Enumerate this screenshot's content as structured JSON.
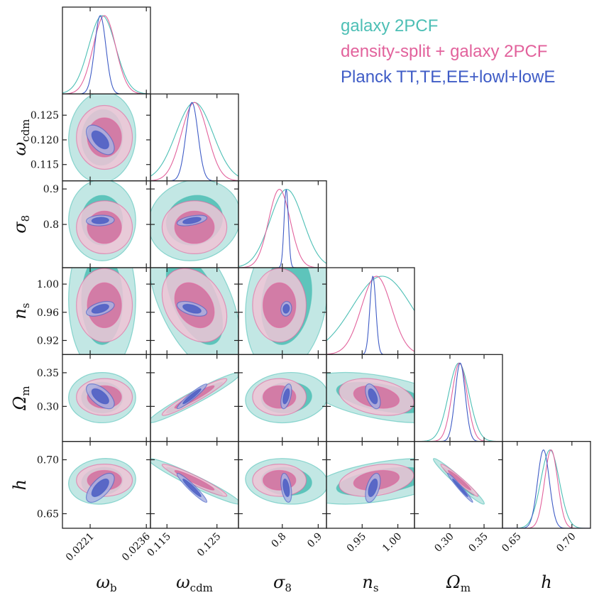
{
  "chart_data": {
    "type": "corner",
    "params": [
      {
        "symbol": "ω",
        "sub": "b",
        "range": [
          0.02136,
          0.02371
        ],
        "ticks": [
          0.0221,
          0.0236
        ],
        "tick_labels": [
          "0.0221",
          "0.0236"
        ]
      },
      {
        "symbol": "ω",
        "sub": "cdm",
        "range": [
          0.1117,
          0.1293
        ],
        "ticks": [
          0.115,
          0.12,
          0.125
        ],
        "tick_labels": [
          "0.115",
          "0.120",
          "0.125"
        ],
        "x_ticks": [
          0.115,
          0.125
        ],
        "x_tick_labels": [
          "0.115",
          "0.125"
        ]
      },
      {
        "symbol": "σ",
        "sub": "8",
        "range": [
          0.678,
          0.923
        ],
        "ticks": [
          0.8,
          0.9
        ],
        "tick_labels": [
          "0.8",
          "0.9"
        ]
      },
      {
        "symbol": "n",
        "sub": "s",
        "range": [
          0.9,
          1.0233
        ],
        "ticks": [
          0.92,
          0.96,
          1.0
        ],
        "tick_labels": [
          "0.92",
          "0.96",
          "1.00"
        ],
        "x_ticks": [
          0.95,
          1.0
        ],
        "x_tick_labels": [
          "0.95",
          "1.00"
        ]
      },
      {
        "symbol": "Ω",
        "sub": "m",
        "range": [
          0.248,
          0.377
        ],
        "ticks": [
          0.3,
          0.35
        ],
        "tick_labels": [
          "0.30",
          "0.35"
        ]
      },
      {
        "symbol": "h",
        "sub": "",
        "range": [
          0.6365,
          0.717
        ],
        "ticks": [
          0.65,
          0.7
        ],
        "tick_labels": [
          "0.65",
          "0.70"
        ]
      }
    ],
    "series": [
      {
        "name": "galaxy 2PCF",
        "color": "#4dbfb5",
        "fill_inner": "#4cbdb4",
        "fill_outer": "#b7e3df",
        "mean": [
          0.02242,
          0.1205,
          0.812,
          0.978,
          0.313,
          0.68
        ],
        "sigma": [
          0.00036,
          0.0037,
          0.046,
          0.042,
          0.015,
          0.0085
        ],
        "corr": [
          [
            1,
            0.05,
            0,
            0,
            0,
            0.1
          ],
          [
            0.05,
            1,
            0.1,
            -0.55,
            0.96,
            -0.96
          ],
          [
            0,
            0.1,
            1,
            0.2,
            0.1,
            -0.1
          ],
          [
            0,
            -0.55,
            0.2,
            1,
            -0.5,
            0.5
          ],
          [
            0,
            0.96,
            0.1,
            -0.5,
            1,
            -0.97
          ],
          [
            0.1,
            -0.96,
            -0.1,
            0.5,
            -0.97,
            1
          ]
        ]
      },
      {
        "name": "density-split + galaxy 2PCF",
        "color": "#e2629c",
        "fill_inner": "#d0709f",
        "fill_outer": "#efc4d6",
        "mean": [
          0.02248,
          0.1205,
          0.792,
          0.97,
          0.314,
          0.681
        ],
        "sigma": [
          0.0003,
          0.0026,
          0.03,
          0.021,
          0.011,
          0.006
        ],
        "corr": [
          [
            1,
            0,
            0,
            0,
            0,
            0
          ],
          [
            0,
            1,
            0,
            -0.3,
            0.95,
            -0.95
          ],
          [
            0,
            0,
            1,
            0,
            0,
            0
          ],
          [
            0,
            -0.3,
            0,
            1,
            -0.3,
            0.3
          ],
          [
            0,
            0.95,
            0,
            -0.3,
            1,
            -0.97
          ],
          [
            0,
            -0.95,
            0,
            0.3,
            -0.97,
            1
          ]
        ]
      },
      {
        "name": "Planck TT,TE,EE+lowl+lowE",
        "color": "#3f5cc6",
        "fill_inner": "#4a5cc2",
        "fill_outer": "#a9b2e2",
        "mean": [
          0.02237,
          0.12,
          0.811,
          0.965,
          0.315,
          0.674
        ],
        "sigma": [
          0.00015,
          0.0012,
          0.006,
          0.0042,
          0.0074,
          0.0054
        ],
        "corr": [
          [
            1,
            -0.55,
            0.1,
            0.5,
            -0.6,
            0.65
          ],
          [
            -0.55,
            1,
            0.5,
            -0.5,
            0.95,
            -0.95
          ],
          [
            0.1,
            0.5,
            1,
            0.1,
            0.5,
            -0.4
          ],
          [
            0.5,
            -0.5,
            0.1,
            1,
            -0.5,
            0.5
          ],
          [
            -0.6,
            0.95,
            0.5,
            -0.5,
            1,
            -0.98
          ],
          [
            0.65,
            -0.95,
            -0.4,
            0.5,
            -0.98,
            1
          ]
        ]
      }
    ],
    "legend_position": "top-right",
    "grid": false
  }
}
